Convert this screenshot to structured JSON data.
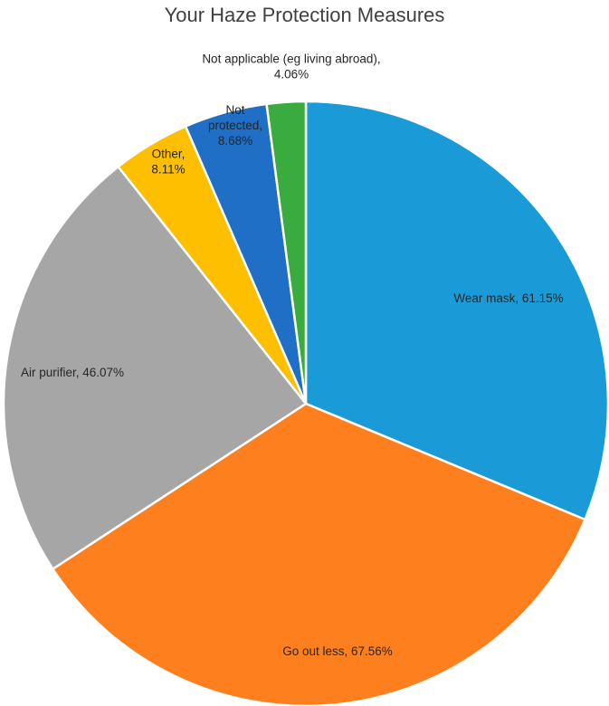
{
  "chart_data": {
    "type": "pie",
    "title": "Your Haze Protection Measures",
    "slices": [
      {
        "name": "Wear mask",
        "value": 61.15,
        "label": [
          "Wear mask, 61.15%"
        ],
        "color": "#1a9bd7"
      },
      {
        "name": "Go out less",
        "value": 67.56,
        "label": [
          "Go out less, 67.56%"
        ],
        "color": "#fd7f1e"
      },
      {
        "name": "Air purifier",
        "value": 46.07,
        "label": [
          "Air purifier, 46.07%"
        ],
        "color": "#a6a6a6"
      },
      {
        "name": "Other",
        "value": 8.11,
        "label": [
          "Other,",
          "8.11%"
        ],
        "color": "#fdbf00"
      },
      {
        "name": "Not protected",
        "value": 8.68,
        "label": [
          "Not",
          "protected,",
          "8.68%"
        ],
        "color": "#1f6fc6"
      },
      {
        "name": "Not applicable (eg living abroad)",
        "value": 4.06,
        "label": [
          "Not applicable (eg living abroad),",
          "4.06%"
        ],
        "color": "#3aac3f"
      }
    ]
  }
}
